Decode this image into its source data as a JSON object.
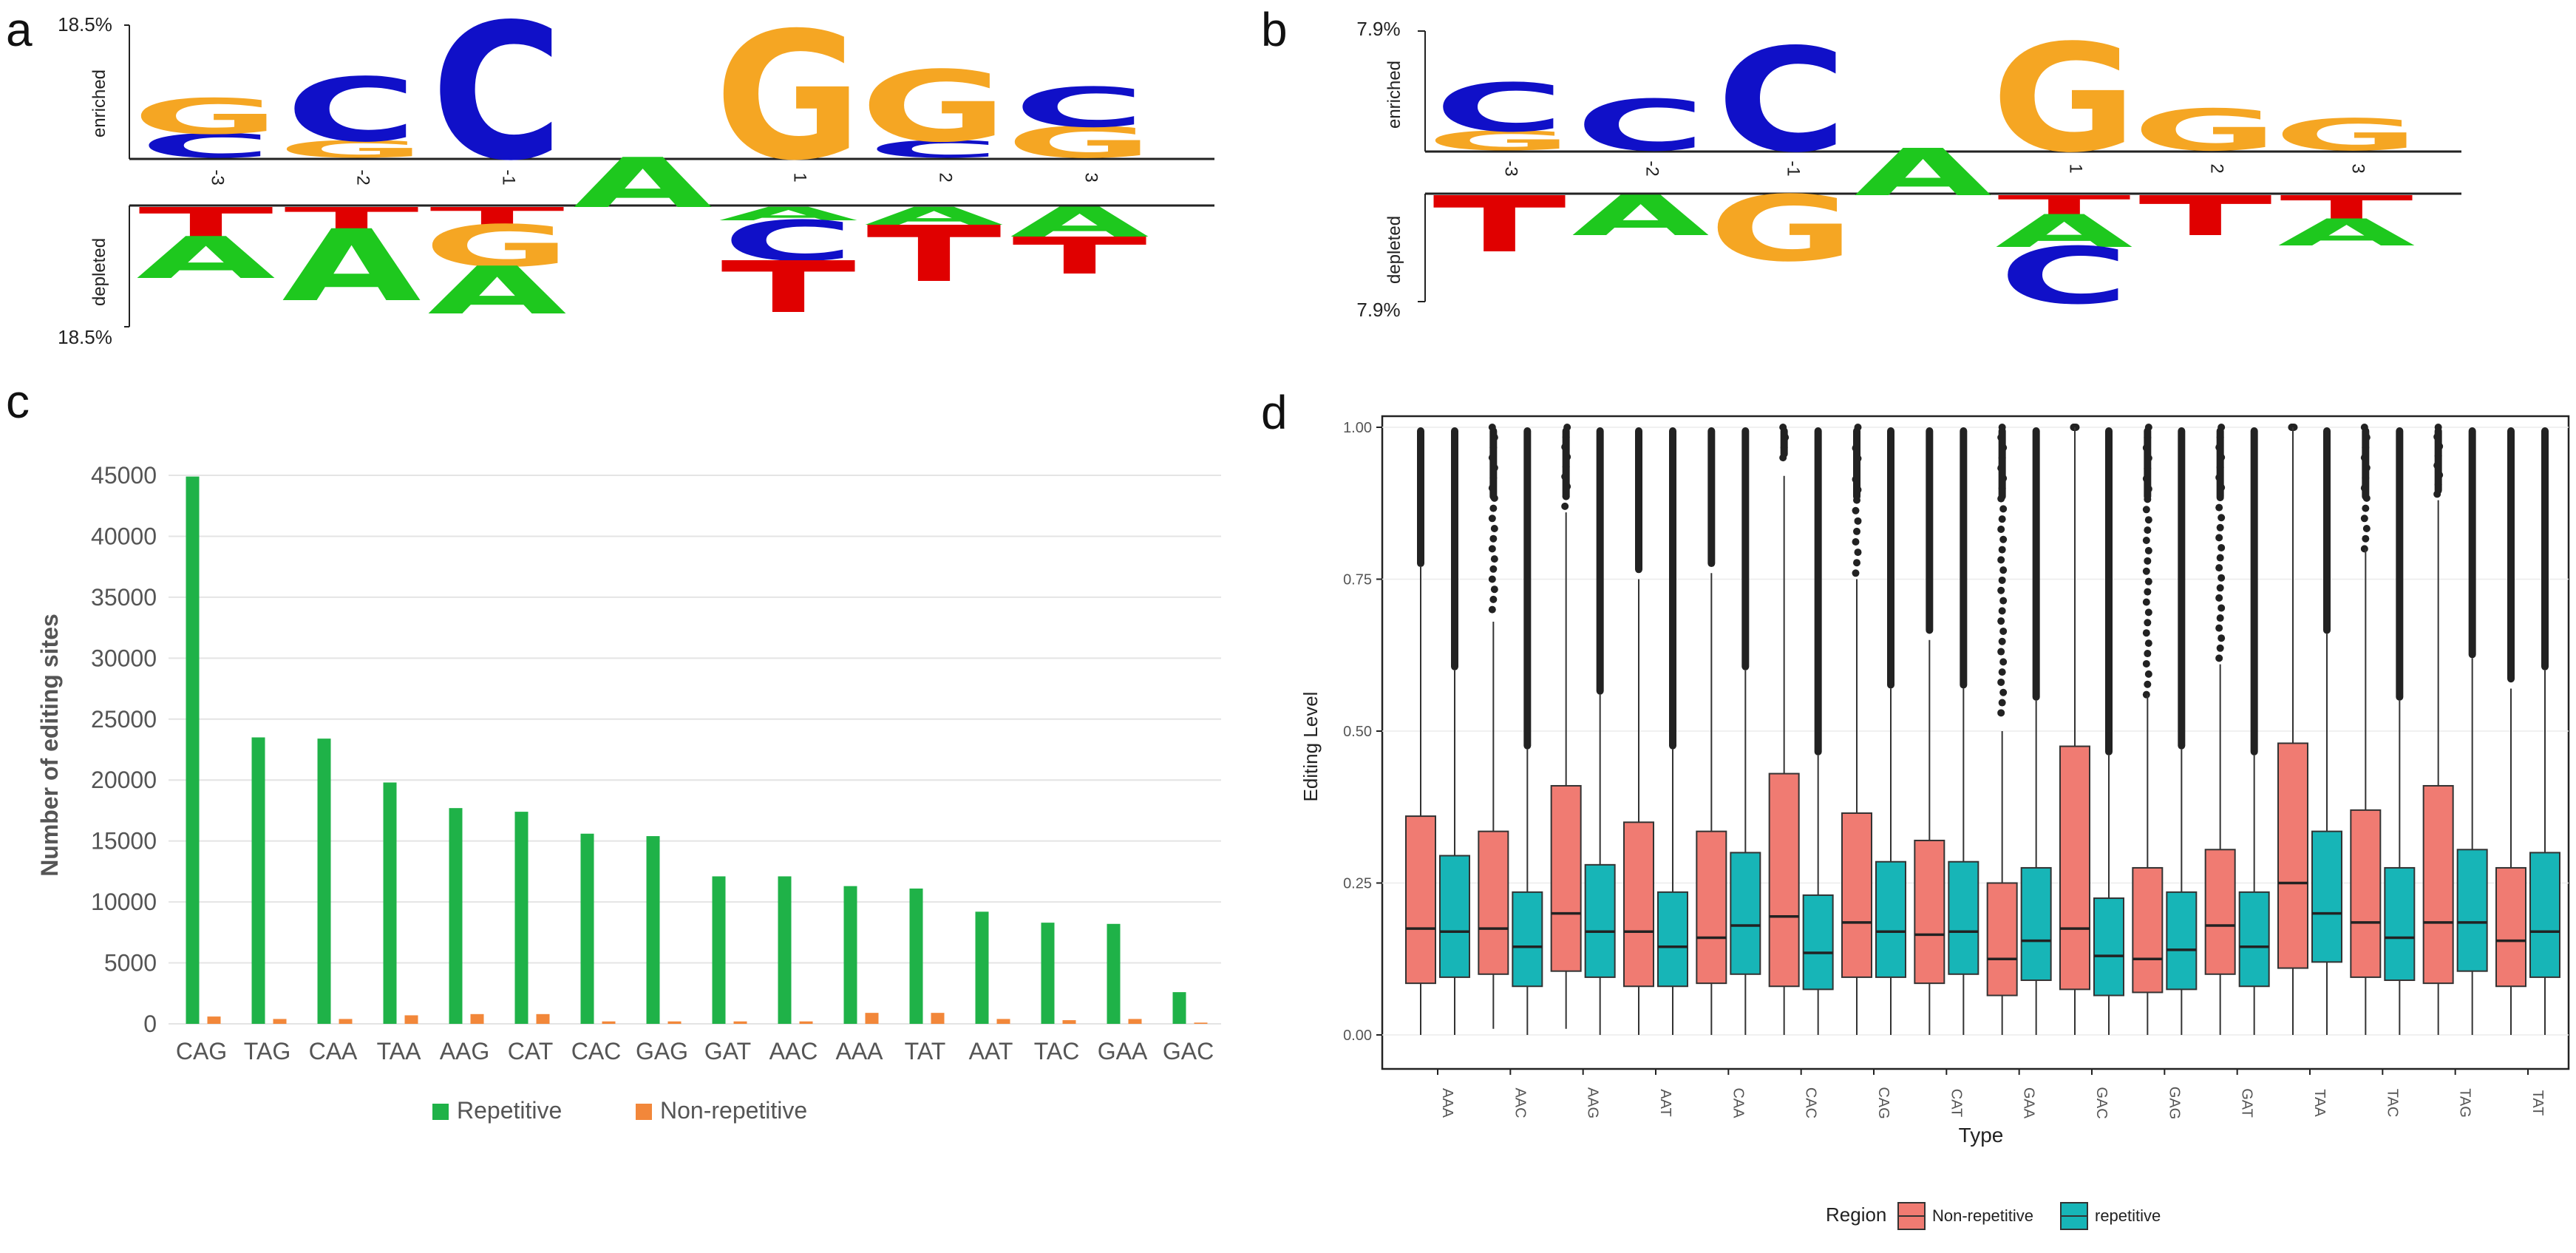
{
  "colors": {
    "G": "#f5a623",
    "C": "#1010c8",
    "T": "#e00000",
    "A": "#1ec81e",
    "repetitive_bar": "#1fb248",
    "nonrep_bar": "#f2873a",
    "box_nonrep": "#f07b72",
    "box_rep": "#17b5b7",
    "grid": "#e4e4e4",
    "text": "#555555",
    "dark": "#222222"
  },
  "panels": {
    "a": "a",
    "b": "b",
    "c": "c",
    "d": "d"
  },
  "logo_a": {
    "top_scale": "18.5%",
    "bottom_scale": "18.5%",
    "enriched_label": "enriched",
    "depleted_label": "depleted",
    "positions": [
      "-3",
      "-2",
      "-1",
      "",
      "1",
      "2",
      "3"
    ],
    "stacks": [
      {
        "up": [
          [
            "C",
            0.17
          ],
          [
            "G",
            0.25
          ]
        ],
        "down": [
          [
            "T",
            0.2
          ],
          [
            "A",
            0.28
          ]
        ]
      },
      {
        "up": [
          [
            "G",
            0.12
          ],
          [
            "C",
            0.45
          ]
        ],
        "down": [
          [
            "T",
            0.15
          ],
          [
            "A",
            0.48
          ]
        ]
      },
      {
        "up": [
          [
            "C",
            0.96
          ]
        ],
        "down": [
          [
            "T",
            0.12
          ],
          [
            "G",
            0.28
          ],
          [
            "A",
            0.32
          ]
        ]
      },
      {
        "up": [],
        "down": [],
        "center": [
          "A",
          0.27
        ]
      },
      {
        "up": [
          [
            "G",
            0.9
          ]
        ],
        "down": [
          [
            "A",
            0.09
          ],
          [
            "C",
            0.27
          ],
          [
            "T",
            0.35
          ]
        ]
      },
      {
        "up": [
          [
            "C",
            0.12
          ],
          [
            "G",
            0.5
          ]
        ],
        "down": [
          [
            "A",
            0.12
          ],
          [
            "T",
            0.38
          ]
        ]
      },
      {
        "up": [
          [
            "G",
            0.22
          ],
          [
            "C",
            0.28
          ]
        ],
        "down": [
          [
            "A",
            0.2
          ],
          [
            "T",
            0.25
          ]
        ]
      }
    ]
  },
  "logo_b": {
    "top_scale": "7.9%",
    "bottom_scale": "7.9%",
    "enriched_label": "enriched",
    "depleted_label": "depleted",
    "positions": [
      "-3",
      "-2",
      "-1",
      "",
      "1",
      "2",
      "3"
    ],
    "stacks": [
      {
        "up": [
          [
            "G",
            0.14
          ],
          [
            "C",
            0.35
          ]
        ],
        "down": [
          [
            "T",
            0.38
          ]
        ]
      },
      {
        "up": [
          [
            "C",
            0.37
          ]
        ],
        "down": [
          [
            "A",
            0.27
          ]
        ]
      },
      {
        "up": [
          [
            "C",
            0.75
          ]
        ],
        "down": [
          [
            "G",
            0.44
          ]
        ]
      },
      {
        "up": [],
        "down": [],
        "center": [
          "A",
          0.28
        ]
      },
      {
        "up": [
          [
            "G",
            0.78
          ]
        ],
        "down": [
          [
            "T",
            0.13
          ],
          [
            "A",
            0.22
          ],
          [
            "C",
            0.38
          ]
        ]
      },
      {
        "up": [
          [
            "G",
            0.3
          ]
        ],
        "down": [
          [
            "T",
            0.27
          ]
        ]
      },
      {
        "up": [
          [
            "G",
            0.23
          ]
        ],
        "down": [
          [
            "T",
            0.16
          ],
          [
            "A",
            0.18
          ]
        ]
      }
    ]
  },
  "chart_data": [
    {
      "panel": "c",
      "type": "bar",
      "ylabel": "Number of editing sites",
      "ylim": [
        0,
        45000
      ],
      "yticks": [
        "0",
        "5000",
        "10000",
        "15000",
        "20000",
        "25000",
        "30000",
        "35000",
        "40000",
        "45000"
      ],
      "categories": [
        "CAG",
        "TAG",
        "CAA",
        "TAA",
        "AAG",
        "CAT",
        "CAC",
        "GAG",
        "GAT",
        "AAC",
        "AAA",
        "TAT",
        "AAT",
        "TAC",
        "GAA",
        "GAC"
      ],
      "series": [
        {
          "name": "Repetitive",
          "values": [
            44900,
            23500,
            23400,
            19800,
            17700,
            17400,
            15600,
            15400,
            12100,
            12100,
            11300,
            11100,
            9200,
            8300,
            8200,
            2600
          ]
        },
        {
          "name": "Non-repetitive",
          "values": [
            600,
            400,
            400,
            700,
            800,
            800,
            200,
            200,
            200,
            200,
            900,
            900,
            400,
            300,
            400,
            100
          ]
        }
      ],
      "legend": [
        "Repetitive",
        "Non-repetitive"
      ],
      "legend_position": "bottom"
    },
    {
      "panel": "d",
      "type": "box",
      "xlabel": "Type",
      "ylabel": "Editing Level",
      "ylim": [
        0,
        1
      ],
      "yticks": [
        "0.00",
        "0.25",
        "0.50",
        "0.75",
        "1.00"
      ],
      "categories": [
        "AAA",
        "AAC",
        "AAG",
        "AAT",
        "CAA",
        "CAC",
        "CAG",
        "CAT",
        "GAA",
        "GAC",
        "GAG",
        "GAT",
        "TAA",
        "TAC",
        "TAG",
        "TAT"
      ],
      "legend_title": "Region",
      "legend": [
        "Non-repetitive",
        "repetitive"
      ],
      "legend_position": "bottom",
      "series": [
        {
          "name": "Non-repetitive",
          "boxes": [
            {
              "q1": 0.085,
              "med": 0.175,
              "q3": 0.36,
              "wlo": 0.0,
              "whi": 0.77,
              "out_lo": 0.77,
              "out_hi": 1.0,
              "dense": true
            },
            {
              "q1": 0.1,
              "med": 0.175,
              "q3": 0.335,
              "wlo": 0.01,
              "whi": 0.68,
              "out_lo": 0.7,
              "out_hi": 1.0,
              "dense": false
            },
            {
              "q1": 0.105,
              "med": 0.2,
              "q3": 0.41,
              "wlo": 0.01,
              "whi": 0.86,
              "out_lo": 0.87,
              "out_hi": 1.0,
              "dense": false
            },
            {
              "q1": 0.08,
              "med": 0.17,
              "q3": 0.35,
              "wlo": 0.0,
              "whi": 0.75,
              "out_lo": 0.76,
              "out_hi": 1.0,
              "dense": true
            },
            {
              "q1": 0.085,
              "med": 0.16,
              "q3": 0.335,
              "wlo": 0.0,
              "whi": 0.76,
              "out_lo": 0.77,
              "out_hi": 1.0,
              "dense": true
            },
            {
              "q1": 0.08,
              "med": 0.195,
              "q3": 0.43,
              "wlo": 0.0,
              "whi": 0.92,
              "out_lo": 0.95,
              "out_hi": 1.0,
              "dense": false
            },
            {
              "q1": 0.095,
              "med": 0.185,
              "q3": 0.365,
              "wlo": 0.0,
              "whi": 0.75,
              "out_lo": 0.76,
              "out_hi": 1.0,
              "dense": false
            },
            {
              "q1": 0.085,
              "med": 0.165,
              "q3": 0.32,
              "wlo": 0.0,
              "whi": 0.65,
              "out_lo": 0.66,
              "out_hi": 1.0,
              "dense": true
            },
            {
              "q1": 0.065,
              "med": 0.125,
              "q3": 0.25,
              "wlo": 0.0,
              "whi": 0.5,
              "out_lo": 0.53,
              "out_hi": 1.0,
              "dense": false
            },
            {
              "q1": 0.075,
              "med": 0.175,
              "q3": 0.475,
              "wlo": 0.0,
              "whi": 1.0,
              "out_lo": 1.0,
              "out_hi": 1.0,
              "dense": false
            },
            {
              "q1": 0.07,
              "med": 0.125,
              "q3": 0.275,
              "wlo": 0.0,
              "whi": 0.56,
              "out_lo": 0.56,
              "out_hi": 1.0,
              "dense": false
            },
            {
              "q1": 0.1,
              "med": 0.18,
              "q3": 0.305,
              "wlo": 0.0,
              "whi": 0.61,
              "out_lo": 0.62,
              "out_hi": 1.0,
              "dense": false
            },
            {
              "q1": 0.11,
              "med": 0.25,
              "q3": 0.48,
              "wlo": 0.0,
              "whi": 1.0,
              "out_lo": 1.0,
              "out_hi": 1.0,
              "dense": false
            },
            {
              "q1": 0.095,
              "med": 0.185,
              "q3": 0.37,
              "wlo": 0.0,
              "whi": 0.8,
              "out_lo": 0.8,
              "out_hi": 1.0,
              "dense": false
            },
            {
              "q1": 0.085,
              "med": 0.185,
              "q3": 0.41,
              "wlo": 0.0,
              "whi": 0.88,
              "out_lo": 0.89,
              "out_hi": 1.0,
              "dense": false
            },
            {
              "q1": 0.08,
              "med": 0.155,
              "q3": 0.275,
              "wlo": 0.0,
              "whi": 0.57,
              "out_lo": 0.58,
              "out_hi": 1.0,
              "dense": true
            }
          ]
        },
        {
          "name": "repetitive",
          "boxes": [
            {
              "q1": 0.095,
              "med": 0.17,
              "q3": 0.295,
              "wlo": 0.0,
              "whi": 0.6,
              "out_lo": 0.6,
              "out_hi": 1.0,
              "dense": true
            },
            {
              "q1": 0.08,
              "med": 0.145,
              "q3": 0.235,
              "wlo": 0.0,
              "whi": 0.47,
              "out_lo": 0.47,
              "out_hi": 1.0,
              "dense": true
            },
            {
              "q1": 0.095,
              "med": 0.17,
              "q3": 0.28,
              "wlo": 0.0,
              "whi": 0.56,
              "out_lo": 0.56,
              "out_hi": 1.0,
              "dense": true
            },
            {
              "q1": 0.08,
              "med": 0.145,
              "q3": 0.235,
              "wlo": 0.0,
              "whi": 0.47,
              "out_lo": 0.47,
              "out_hi": 1.0,
              "dense": true
            },
            {
              "q1": 0.1,
              "med": 0.18,
              "q3": 0.3,
              "wlo": 0.0,
              "whi": 0.6,
              "out_lo": 0.6,
              "out_hi": 1.0,
              "dense": true
            },
            {
              "q1": 0.075,
              "med": 0.135,
              "q3": 0.23,
              "wlo": 0.0,
              "whi": 0.46,
              "out_lo": 0.46,
              "out_hi": 1.0,
              "dense": true
            },
            {
              "q1": 0.095,
              "med": 0.17,
              "q3": 0.285,
              "wlo": 0.0,
              "whi": 0.57,
              "out_lo": 0.57,
              "out_hi": 1.0,
              "dense": true
            },
            {
              "q1": 0.1,
              "med": 0.17,
              "q3": 0.285,
              "wlo": 0.0,
              "whi": 0.57,
              "out_lo": 0.57,
              "out_hi": 1.0,
              "dense": true
            },
            {
              "q1": 0.09,
              "med": 0.155,
              "q3": 0.275,
              "wlo": 0.0,
              "whi": 0.55,
              "out_lo": 0.55,
              "out_hi": 1.0,
              "dense": true
            },
            {
              "q1": 0.065,
              "med": 0.13,
              "q3": 0.225,
              "wlo": 0.0,
              "whi": 0.46,
              "out_lo": 0.46,
              "out_hi": 1.0,
              "dense": true
            },
            {
              "q1": 0.075,
              "med": 0.14,
              "q3": 0.235,
              "wlo": 0.0,
              "whi": 0.47,
              "out_lo": 0.47,
              "out_hi": 1.0,
              "dense": true
            },
            {
              "q1": 0.08,
              "med": 0.145,
              "q3": 0.235,
              "wlo": 0.0,
              "whi": 0.46,
              "out_lo": 0.46,
              "out_hi": 1.0,
              "dense": true
            },
            {
              "q1": 0.12,
              "med": 0.2,
              "q3": 0.335,
              "wlo": 0.0,
              "whi": 0.66,
              "out_lo": 0.66,
              "out_hi": 1.0,
              "dense": true
            },
            {
              "q1": 0.09,
              "med": 0.16,
              "q3": 0.275,
              "wlo": 0.0,
              "whi": 0.55,
              "out_lo": 0.55,
              "out_hi": 1.0,
              "dense": true
            },
            {
              "q1": 0.105,
              "med": 0.185,
              "q3": 0.305,
              "wlo": 0.0,
              "whi": 0.62,
              "out_lo": 0.62,
              "out_hi": 1.0,
              "dense": true
            },
            {
              "q1": 0.095,
              "med": 0.17,
              "q3": 0.3,
              "wlo": 0.0,
              "whi": 0.6,
              "out_lo": 0.6,
              "out_hi": 1.0,
              "dense": true
            }
          ]
        }
      ]
    }
  ]
}
